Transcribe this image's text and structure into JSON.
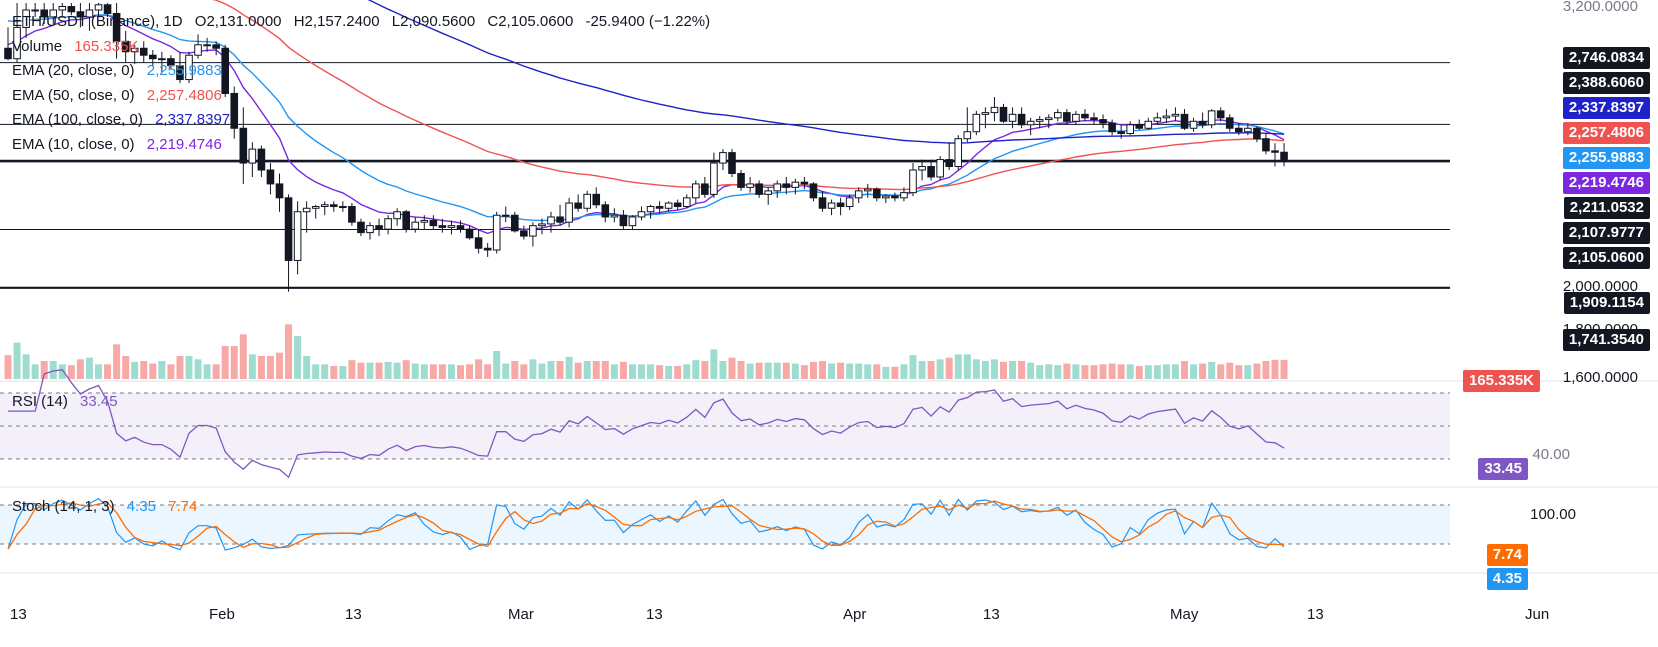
{
  "header": {
    "symbol": "ETH/USDT (Binance), 1D",
    "open": "O2,131.0000",
    "high": "H2,157.2400",
    "low": "L2,090.5600",
    "close": "C2,105.0600",
    "change": "-25.9400 (−1.22%)"
  },
  "legend": {
    "volume": {
      "label": "Volume",
      "value": "165.335K"
    },
    "ema20": {
      "label": "EMA (20, close, 0)",
      "value": "2,255.9883"
    },
    "ema50": {
      "label": "EMA (50, close, 0)",
      "value": "2,257.4806"
    },
    "ema100": {
      "label": "EMA (100, close, 0)",
      "value": "2,337.8397"
    },
    "ema10": {
      "label": "EMA (10, close, 0)",
      "value": "2,219.4746"
    },
    "rsi": {
      "label": "RSI (14)",
      "value": "33.45"
    },
    "stoch": {
      "label": "Stoch (14, 1, 3)",
      "k": "4.35",
      "d": "7.74"
    }
  },
  "price_axis": {
    "ticks": [
      "3,200.0000",
      "2,000.0000",
      "1,800.0000",
      "1,600.0000"
    ]
  },
  "price_labels": [
    {
      "text": "2,746.0834",
      "color": "#131722"
    },
    {
      "text": "2,388.6060",
      "color": "#131722"
    },
    {
      "text": "2,337.8397",
      "color": "#1e22c8"
    },
    {
      "text": "2,257.4806",
      "color": "#ef5350"
    },
    {
      "text": "2,255.9883",
      "color": "#2196f3"
    },
    {
      "text": "2,219.4746",
      "color": "#7b27e0"
    },
    {
      "text": "2,211.0532",
      "color": "#131722"
    },
    {
      "text": "2,107.9777",
      "color": "#131722"
    },
    {
      "text": "2,105.0600",
      "color": "#131722"
    },
    {
      "text": "1,909.1154",
      "color": "#131722"
    },
    {
      "text": "1,741.3540",
      "color": "#131722"
    }
  ],
  "volume_label": {
    "text": "165.335K",
    "color": "#ef5350"
  },
  "rsi_axis": {
    "tick": "40.00",
    "label": "33.45",
    "label_color": "#7e57c2"
  },
  "stoch_axis": {
    "tick": "100.00",
    "k_label": "4.35",
    "d_label": "7.74",
    "k_color": "#2196f3",
    "d_color": "#ff6d00"
  },
  "time_axis": [
    "13",
    "Feb",
    "13",
    "Mar",
    "13",
    "Apr",
    "13",
    "May",
    "13",
    "Jun"
  ],
  "chart_data": {
    "type": "candlestick",
    "title": "ETH/USDT (Binance), 1D",
    "ylim": [
      1620,
      2540
    ],
    "horizontal_levels": [
      2388.606,
      2211.0532,
      2107.9777,
      2105.06,
      1909.1154,
      1741.354
    ],
    "candles": [
      {
        "o": 2430,
        "h": 2490,
        "l": 2395,
        "c": 2400
      },
      {
        "o": 2400,
        "h": 2560,
        "l": 2390,
        "c": 2490
      },
      {
        "o": 2490,
        "h": 2560,
        "l": 2460,
        "c": 2540
      },
      {
        "o": 2540,
        "h": 2560,
        "l": 2520,
        "c": 2540
      },
      {
        "o": 2540,
        "h": 2560,
        "l": 2500,
        "c": 2520
      },
      {
        "o": 2520,
        "h": 2560,
        "l": 2500,
        "c": 2540
      },
      {
        "o": 2540,
        "h": 2560,
        "l": 2520,
        "c": 2550
      },
      {
        "o": 2550,
        "h": 2560,
        "l": 2525,
        "c": 2535
      },
      {
        "o": 2535,
        "h": 2560,
        "l": 2490,
        "c": 2520
      },
      {
        "o": 2520,
        "h": 2560,
        "l": 2480,
        "c": 2540
      },
      {
        "o": 2540,
        "h": 2560,
        "l": 2520,
        "c": 2555
      },
      {
        "o": 2555,
        "h": 2560,
        "l": 2520,
        "c": 2530
      },
      {
        "o": 2530,
        "h": 2560,
        "l": 2400,
        "c": 2450
      },
      {
        "o": 2450,
        "h": 2480,
        "l": 2390,
        "c": 2420
      },
      {
        "o": 2420,
        "h": 2440,
        "l": 2385,
        "c": 2430
      },
      {
        "o": 2430,
        "h": 2450,
        "l": 2390,
        "c": 2410
      },
      {
        "o": 2410,
        "h": 2425,
        "l": 2380,
        "c": 2400
      },
      {
        "o": 2400,
        "h": 2420,
        "l": 2360,
        "c": 2400
      },
      {
        "o": 2400,
        "h": 2410,
        "l": 2370,
        "c": 2380
      },
      {
        "o": 2380,
        "h": 2420,
        "l": 2330,
        "c": 2340
      },
      {
        "o": 2340,
        "h": 2420,
        "l": 2330,
        "c": 2410
      },
      {
        "o": 2410,
        "h": 2470,
        "l": 2400,
        "c": 2440
      },
      {
        "o": 2440,
        "h": 2460,
        "l": 2420,
        "c": 2440
      },
      {
        "o": 2440,
        "h": 2450,
        "l": 2410,
        "c": 2430
      },
      {
        "o": 2430,
        "h": 2440,
        "l": 2290,
        "c": 2300
      },
      {
        "o": 2300,
        "h": 2320,
        "l": 2170,
        "c": 2200
      },
      {
        "o": 2200,
        "h": 2260,
        "l": 2040,
        "c": 2100
      },
      {
        "o": 2100,
        "h": 2160,
        "l": 2060,
        "c": 2140
      },
      {
        "o": 2140,
        "h": 2150,
        "l": 2060,
        "c": 2080
      },
      {
        "o": 2080,
        "h": 2100,
        "l": 2010,
        "c": 2040
      },
      {
        "o": 2040,
        "h": 2070,
        "l": 1960,
        "c": 2000
      },
      {
        "o": 2000,
        "h": 2010,
        "l": 1730,
        "c": 1820
      },
      {
        "o": 1820,
        "h": 1990,
        "l": 1780,
        "c": 1960
      },
      {
        "o": 1960,
        "h": 1990,
        "l": 1900,
        "c": 1970
      },
      {
        "o": 1970,
        "h": 1980,
        "l": 1940,
        "c": 1975
      },
      {
        "o": 1975,
        "h": 1990,
        "l": 1950,
        "c": 1980
      },
      {
        "o": 1980,
        "h": 1990,
        "l": 1960,
        "c": 1975
      },
      {
        "o": 1975,
        "h": 1990,
        "l": 1960,
        "c": 1975
      },
      {
        "o": 1975,
        "h": 1985,
        "l": 1920,
        "c": 1930
      },
      {
        "o": 1930,
        "h": 1940,
        "l": 1890,
        "c": 1900
      },
      {
        "o": 1900,
        "h": 1930,
        "l": 1880,
        "c": 1920
      },
      {
        "o": 1920,
        "h": 1940,
        "l": 1890,
        "c": 1910
      },
      {
        "o": 1910,
        "h": 1950,
        "l": 1895,
        "c": 1940
      },
      {
        "o": 1940,
        "h": 1970,
        "l": 1920,
        "c": 1960
      },
      {
        "o": 1960,
        "h": 1965,
        "l": 1900,
        "c": 1910
      },
      {
        "o": 1910,
        "h": 1945,
        "l": 1900,
        "c": 1930
      },
      {
        "o": 1930,
        "h": 1950,
        "l": 1910,
        "c": 1935
      },
      {
        "o": 1935,
        "h": 1950,
        "l": 1910,
        "c": 1920
      },
      {
        "o": 1920,
        "h": 1940,
        "l": 1900,
        "c": 1915
      },
      {
        "o": 1915,
        "h": 1935,
        "l": 1895,
        "c": 1920
      },
      {
        "o": 1920,
        "h": 1935,
        "l": 1900,
        "c": 1910
      },
      {
        "o": 1910,
        "h": 1920,
        "l": 1880,
        "c": 1885
      },
      {
        "o": 1885,
        "h": 1910,
        "l": 1840,
        "c": 1855
      },
      {
        "o": 1855,
        "h": 1870,
        "l": 1830,
        "c": 1850
      },
      {
        "o": 1850,
        "h": 1960,
        "l": 1840,
        "c": 1950
      },
      {
        "o": 1950,
        "h": 1975,
        "l": 1930,
        "c": 1950
      },
      {
        "o": 1950,
        "h": 1960,
        "l": 1900,
        "c": 1905
      },
      {
        "o": 1905,
        "h": 1920,
        "l": 1880,
        "c": 1890
      },
      {
        "o": 1890,
        "h": 1930,
        "l": 1860,
        "c": 1920
      },
      {
        "o": 1920,
        "h": 1940,
        "l": 1895,
        "c": 1925
      },
      {
        "o": 1925,
        "h": 1960,
        "l": 1900,
        "c": 1945
      },
      {
        "o": 1945,
        "h": 1980,
        "l": 1920,
        "c": 1930
      },
      {
        "o": 1930,
        "h": 2000,
        "l": 1915,
        "c": 1985
      },
      {
        "o": 1985,
        "h": 2010,
        "l": 1960,
        "c": 1970
      },
      {
        "o": 1970,
        "h": 2020,
        "l": 1960,
        "c": 2010
      },
      {
        "o": 2010,
        "h": 2030,
        "l": 1970,
        "c": 1980
      },
      {
        "o": 1980,
        "h": 1990,
        "l": 1930,
        "c": 1945
      },
      {
        "o": 1945,
        "h": 1970,
        "l": 1930,
        "c": 1950
      },
      {
        "o": 1950,
        "h": 1965,
        "l": 1910,
        "c": 1920
      },
      {
        "o": 1920,
        "h": 1950,
        "l": 1910,
        "c": 1945
      },
      {
        "o": 1945,
        "h": 1975,
        "l": 1935,
        "c": 1960
      },
      {
        "o": 1960,
        "h": 1980,
        "l": 1940,
        "c": 1975
      },
      {
        "o": 1975,
        "h": 1990,
        "l": 1955,
        "c": 1970
      },
      {
        "o": 1970,
        "h": 1990,
        "l": 1960,
        "c": 1985
      },
      {
        "o": 1985,
        "h": 1995,
        "l": 1965,
        "c": 1975
      },
      {
        "o": 1975,
        "h": 2010,
        "l": 1970,
        "c": 2000
      },
      {
        "o": 2000,
        "h": 2050,
        "l": 1985,
        "c": 2040
      },
      {
        "o": 2040,
        "h": 2060,
        "l": 2000,
        "c": 2010
      },
      {
        "o": 2010,
        "h": 2130,
        "l": 2000,
        "c": 2100
      },
      {
        "o": 2100,
        "h": 2140,
        "l": 2080,
        "c": 2130
      },
      {
        "o": 2130,
        "h": 2140,
        "l": 2060,
        "c": 2070
      },
      {
        "o": 2070,
        "h": 2080,
        "l": 2020,
        "c": 2030
      },
      {
        "o": 2030,
        "h": 2060,
        "l": 2015,
        "c": 2040
      },
      {
        "o": 2040,
        "h": 2050,
        "l": 2000,
        "c": 2010
      },
      {
        "o": 2010,
        "h": 2030,
        "l": 1980,
        "c": 2020
      },
      {
        "o": 2020,
        "h": 2050,
        "l": 2000,
        "c": 2040
      },
      {
        "o": 2040,
        "h": 2060,
        "l": 2010,
        "c": 2030
      },
      {
        "o": 2030,
        "h": 2055,
        "l": 2010,
        "c": 2045
      },
      {
        "o": 2045,
        "h": 2060,
        "l": 2025,
        "c": 2040
      },
      {
        "o": 2040,
        "h": 2045,
        "l": 1990,
        "c": 2000
      },
      {
        "o": 2000,
        "h": 2020,
        "l": 1960,
        "c": 1970
      },
      {
        "o": 1970,
        "h": 1995,
        "l": 1950,
        "c": 1985
      },
      {
        "o": 1985,
        "h": 2000,
        "l": 1950,
        "c": 1975
      },
      {
        "o": 1975,
        "h": 2010,
        "l": 1965,
        "c": 2000
      },
      {
        "o": 2000,
        "h": 2030,
        "l": 1985,
        "c": 2020
      },
      {
        "o": 2020,
        "h": 2040,
        "l": 2000,
        "c": 2025
      },
      {
        "o": 2025,
        "h": 2030,
        "l": 1990,
        "c": 2000
      },
      {
        "o": 2000,
        "h": 2010,
        "l": 1985,
        "c": 2005
      },
      {
        "o": 2005,
        "h": 2015,
        "l": 1990,
        "c": 2000
      },
      {
        "o": 2000,
        "h": 2030,
        "l": 1990,
        "c": 2015
      },
      {
        "o": 2015,
        "h": 2100,
        "l": 2005,
        "c": 2080
      },
      {
        "o": 2080,
        "h": 2110,
        "l": 2050,
        "c": 2090
      },
      {
        "o": 2090,
        "h": 2110,
        "l": 2050,
        "c": 2060
      },
      {
        "o": 2060,
        "h": 2120,
        "l": 2050,
        "c": 2110
      },
      {
        "o": 2110,
        "h": 2160,
        "l": 2080,
        "c": 2090
      },
      {
        "o": 2090,
        "h": 2180,
        "l": 2080,
        "c": 2170
      },
      {
        "o": 2170,
        "h": 2260,
        "l": 2160,
        "c": 2190
      },
      {
        "o": 2190,
        "h": 2250,
        "l": 2180,
        "c": 2240
      },
      {
        "o": 2240,
        "h": 2260,
        "l": 2200,
        "c": 2245
      },
      {
        "o": 2245,
        "h": 2290,
        "l": 2220,
        "c": 2260
      },
      {
        "o": 2260,
        "h": 2270,
        "l": 2215,
        "c": 2220
      },
      {
        "o": 2220,
        "h": 2260,
        "l": 2200,
        "c": 2240
      },
      {
        "o": 2240,
        "h": 2260,
        "l": 2200,
        "c": 2210
      },
      {
        "o": 2210,
        "h": 2230,
        "l": 2180,
        "c": 2220
      },
      {
        "o": 2220,
        "h": 2235,
        "l": 2200,
        "c": 2225
      },
      {
        "o": 2225,
        "h": 2240,
        "l": 2200,
        "c": 2230
      },
      {
        "o": 2230,
        "h": 2255,
        "l": 2220,
        "c": 2245
      },
      {
        "o": 2245,
        "h": 2255,
        "l": 2210,
        "c": 2220
      },
      {
        "o": 2220,
        "h": 2250,
        "l": 2210,
        "c": 2240
      },
      {
        "o": 2240,
        "h": 2255,
        "l": 2220,
        "c": 2230
      },
      {
        "o": 2230,
        "h": 2245,
        "l": 2210,
        "c": 2225
      },
      {
        "o": 2225,
        "h": 2240,
        "l": 2200,
        "c": 2215
      },
      {
        "o": 2215,
        "h": 2225,
        "l": 2180,
        "c": 2190
      },
      {
        "o": 2190,
        "h": 2210,
        "l": 2170,
        "c": 2185
      },
      {
        "o": 2185,
        "h": 2220,
        "l": 2180,
        "c": 2210
      },
      {
        "o": 2210,
        "h": 2225,
        "l": 2195,
        "c": 2200
      },
      {
        "o": 2200,
        "h": 2230,
        "l": 2195,
        "c": 2220
      },
      {
        "o": 2220,
        "h": 2245,
        "l": 2210,
        "c": 2230
      },
      {
        "o": 2230,
        "h": 2255,
        "l": 2215,
        "c": 2235
      },
      {
        "o": 2235,
        "h": 2260,
        "l": 2220,
        "c": 2240
      },
      {
        "o": 2240,
        "h": 2255,
        "l": 2195,
        "c": 2200
      },
      {
        "o": 2200,
        "h": 2230,
        "l": 2190,
        "c": 2220
      },
      {
        "o": 2220,
        "h": 2245,
        "l": 2200,
        "c": 2210
      },
      {
        "o": 2210,
        "h": 2255,
        "l": 2200,
        "c": 2250
      },
      {
        "o": 2250,
        "h": 2260,
        "l": 2220,
        "c": 2230
      },
      {
        "o": 2230,
        "h": 2240,
        "l": 2190,
        "c": 2200
      },
      {
        "o": 2200,
        "h": 2215,
        "l": 2180,
        "c": 2190
      },
      {
        "o": 2190,
        "h": 2215,
        "l": 2180,
        "c": 2200
      },
      {
        "o": 2200,
        "h": 2205,
        "l": 2160,
        "c": 2170
      },
      {
        "o": 2170,
        "h": 2185,
        "l": 2125,
        "c": 2135
      },
      {
        "o": 2135,
        "h": 2157,
        "l": 2090,
        "c": 2131
      },
      {
        "o": 2131,
        "h": 2157.24,
        "l": 2090.56,
        "c": 2105.06
      }
    ]
  }
}
